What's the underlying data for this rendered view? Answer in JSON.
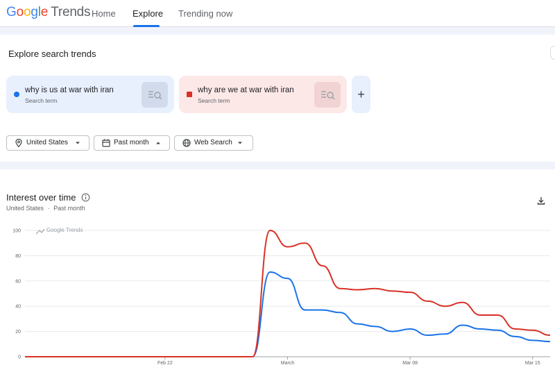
{
  "header": {
    "logo_google": [
      "G",
      "o",
      "o",
      "g",
      "l",
      "e"
    ],
    "logo_trends": "Trends",
    "nav": {
      "home": "Home",
      "explore": "Explore",
      "trending": "Trending now"
    }
  },
  "explore": {
    "title": "Explore search trends",
    "terms": [
      {
        "text": "why is us at war with iran",
        "subtitle": "Search term",
        "color": "#1a73e8"
      },
      {
        "text": "why are we at war with iran",
        "subtitle": "Search term",
        "color": "#d93025"
      }
    ],
    "add_label": "+",
    "filters": {
      "location": "United States",
      "time": "Past month",
      "property": "Web Search"
    }
  },
  "interest": {
    "title": "Interest over time",
    "location": "United States",
    "separator": "·",
    "period": "Past month",
    "watermark": "Google Trends"
  },
  "chart_data": {
    "type": "line",
    "ylim": [
      0,
      100
    ],
    "yticks": [
      0,
      20,
      40,
      60,
      80,
      100
    ],
    "grid": true,
    "x_tick_labels": [
      "Feb 22",
      "March",
      "Mar 08",
      "Mar 15"
    ],
    "x": [
      "Feb 14",
      "Feb 15",
      "Feb 16",
      "Feb 17",
      "Feb 18",
      "Feb 19",
      "Feb 20",
      "Feb 21",
      "Feb 22",
      "Feb 23",
      "Feb 24",
      "Feb 25",
      "Feb 26",
      "Feb 27",
      "Feb 28",
      "Mar 01",
      "Mar 02",
      "Mar 03",
      "Mar 04",
      "Mar 05",
      "Mar 06",
      "Mar 07",
      "Mar 08",
      "Mar 09",
      "Mar 10",
      "Mar 11",
      "Mar 12",
      "Mar 13",
      "Mar 14",
      "Mar 15",
      "Mar 16"
    ],
    "series": [
      {
        "color": "#1a73e8",
        "values": [
          0,
          0,
          0,
          0,
          0,
          0,
          0,
          0,
          0,
          0,
          0,
          0,
          0,
          0,
          67,
          62,
          37,
          37,
          35,
          26,
          24,
          20,
          22,
          17,
          18,
          25,
          22,
          21,
          16,
          13,
          12
        ]
      },
      {
        "color": "#d93025",
        "values": [
          0,
          0,
          0,
          0,
          0,
          0,
          0,
          0,
          0,
          0,
          0,
          0,
          0,
          0,
          100,
          87,
          90,
          72,
          54,
          53,
          54,
          52,
          51,
          44,
          40,
          43,
          33,
          33,
          22,
          21,
          17
        ]
      }
    ]
  }
}
